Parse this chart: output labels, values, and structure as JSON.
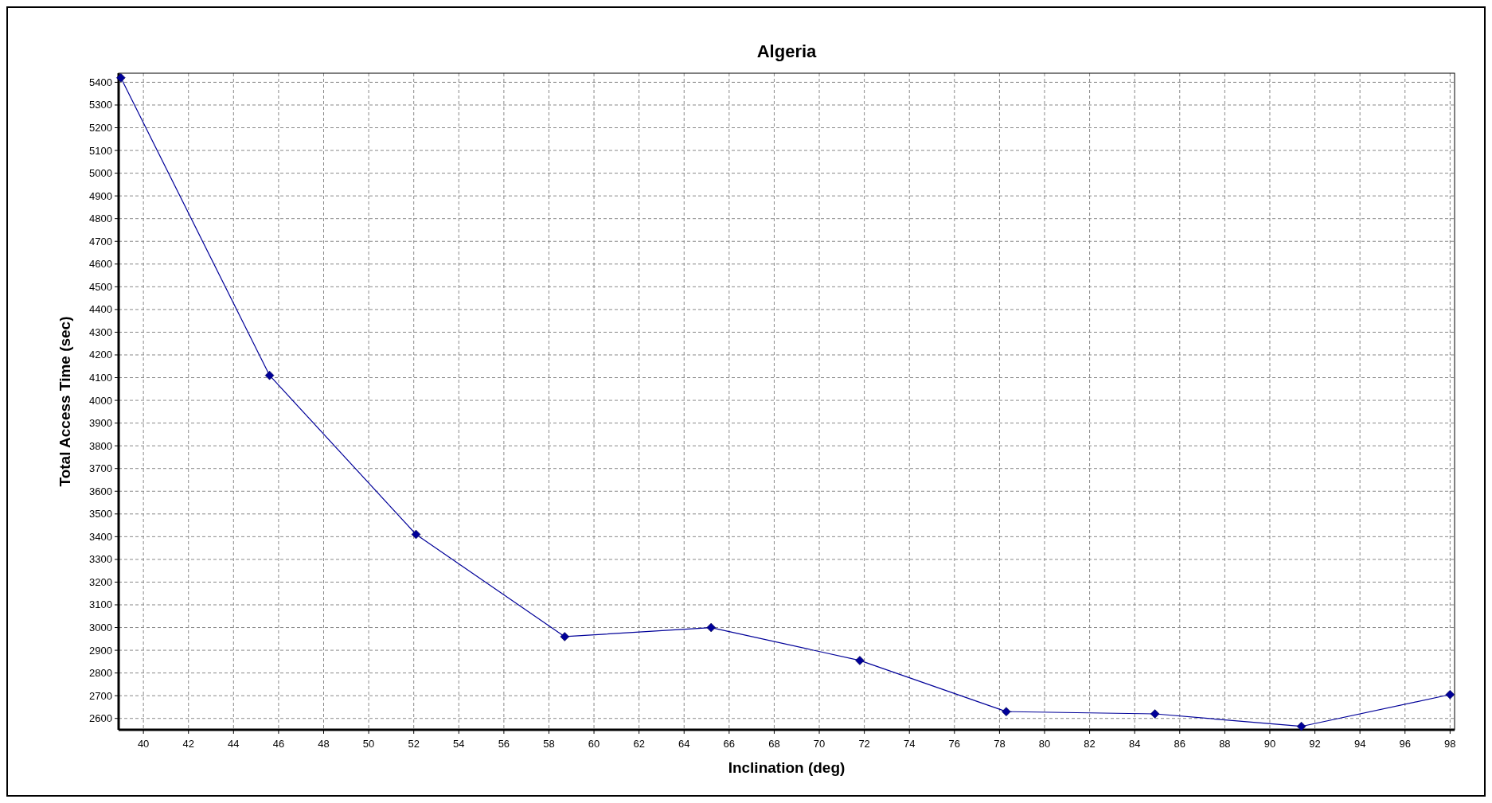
{
  "chart_data": {
    "type": "line",
    "title": "Algeria",
    "xlabel": "Inclination (deg)",
    "ylabel": "Total Access Time (sec)",
    "x": [
      39,
      45.6,
      52.1,
      58.7,
      65.2,
      71.8,
      78.3,
      84.9,
      91.4,
      98
    ],
    "series": [
      {
        "color": "#000099",
        "values": [
          5420,
          4110,
          3410,
          2960,
          3000,
          2855,
          2630,
          2620,
          2565,
          2705
        ]
      }
    ],
    "xlim": [
      38.9,
      98.2
    ],
    "ylim": [
      2550,
      5440
    ],
    "xticks": [
      40,
      42,
      44,
      46,
      48,
      50,
      52,
      54,
      56,
      58,
      60,
      62,
      64,
      66,
      68,
      70,
      72,
      74,
      76,
      78,
      80,
      82,
      84,
      86,
      88,
      90,
      92,
      94,
      96,
      98
    ],
    "yticks": [
      2600,
      2700,
      2800,
      2900,
      3000,
      3100,
      3200,
      3300,
      3400,
      3500,
      3600,
      3700,
      3800,
      3900,
      4000,
      4100,
      4200,
      4300,
      4400,
      4500,
      4600,
      4700,
      4800,
      4900,
      5000,
      5100,
      5200,
      5300,
      5400
    ],
    "grid": true,
    "marker": "diamond",
    "line_style": "solid"
  }
}
